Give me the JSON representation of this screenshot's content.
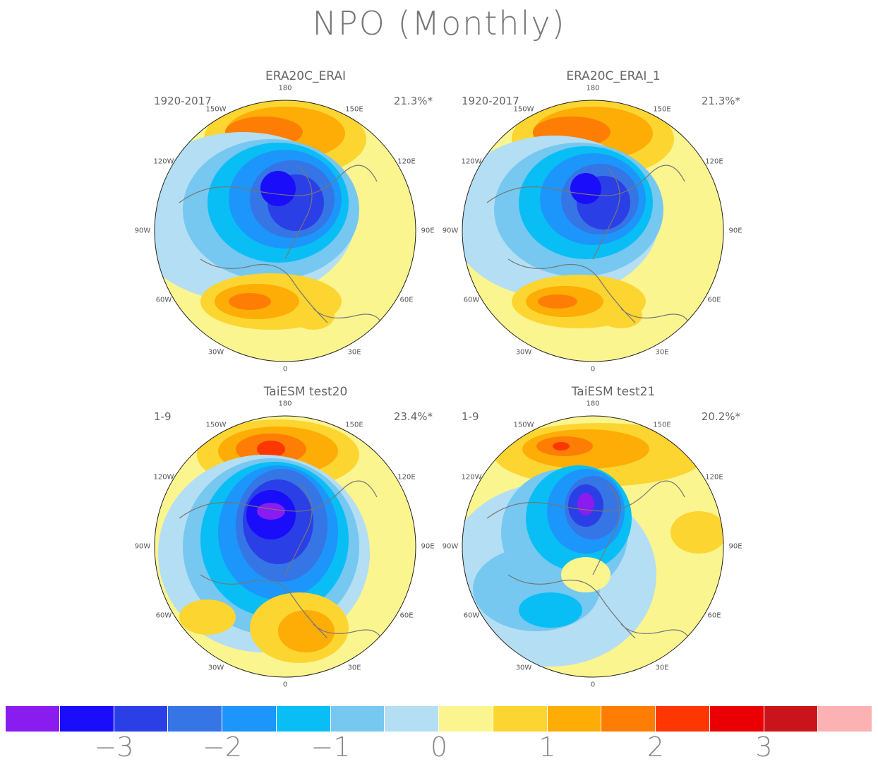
{
  "title": "NPO (Monthly)",
  "panels": [
    {
      "title": "ERA20C_ERAI",
      "period": "1920-2017",
      "variance": "21.3%*"
    },
    {
      "title": "ERA20C_ERAI_1",
      "period": "1920-2017",
      "variance": "21.3%*"
    },
    {
      "title": "TaiESM test20",
      "period": "1-9",
      "variance": "23.4%*"
    },
    {
      "title": "TaiESM test21",
      "period": "1-9",
      "variance": "20.2%*"
    }
  ],
  "lon_labels": {
    "n180": "180",
    "w150": "150W",
    "e150": "150E",
    "w120": "120W",
    "e120": "120E",
    "w90": "90W",
    "e90": "90E",
    "w60": "60W",
    "e60": "60E",
    "w30": "30W",
    "e30": "30E",
    "zero": "0"
  },
  "colorbar": {
    "colors": [
      "#8a1cf0",
      "#1a0dfa",
      "#2b3fe6",
      "#3575e6",
      "#1c96fb",
      "#09bef5",
      "#76c8f0",
      "#b4def3",
      "#fbf590",
      "#fcd531",
      "#fdad05",
      "#fe7d04",
      "#fe3602",
      "#ea0004",
      "#c9141b",
      "#fcb1b2"
    ],
    "labels": [
      "−3",
      "−2",
      "−1",
      "0",
      "1",
      "2",
      "3"
    ]
  }
}
